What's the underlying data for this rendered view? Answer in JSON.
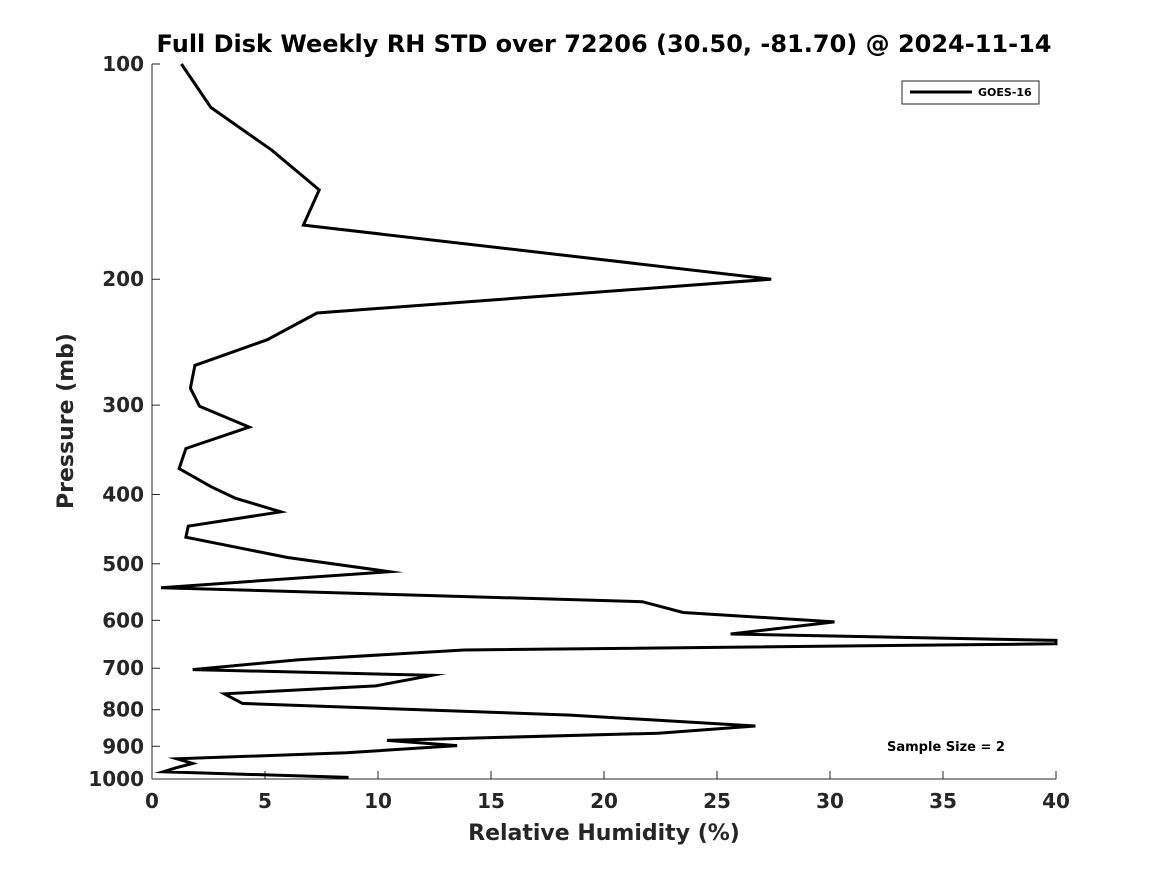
{
  "chart_data": {
    "type": "line",
    "title": "Full Disk Weekly RH STD over 72206 (30.50, -81.70) @ 2024-11-14",
    "xlabel": "Relative Humidity (%)",
    "ylabel": "Pressure (mb)",
    "xlim": [
      0,
      40
    ],
    "ylim": [
      100,
      1000
    ],
    "y_scale": "log",
    "y_reversed": true,
    "grid": false,
    "legend_position": "top-right",
    "x_ticks": [
      0,
      5,
      10,
      15,
      20,
      25,
      30,
      35,
      40
    ],
    "x_tick_labels": [
      "0",
      "5",
      "10",
      "15",
      "20",
      "25",
      "30",
      "35",
      "40"
    ],
    "y_ticks": [
      100,
      200,
      300,
      400,
      500,
      600,
      700,
      800,
      900,
      1000
    ],
    "y_tick_labels": [
      "100",
      "200",
      "300",
      "400",
      "500",
      "600",
      "700",
      "800",
      "900",
      "1000"
    ],
    "series": [
      {
        "name": "GOES-16",
        "color": "#000000",
        "x": [
          1.3,
          2.6,
          5.3,
          7.4,
          6.7,
          27.4,
          7.3,
          5.1,
          1.9,
          1.7,
          2.1,
          4.3,
          1.5,
          1.2,
          2.6,
          3.7,
          5.7,
          1.6,
          1.5,
          6.0,
          10.5,
          0.4,
          21.7,
          23.5,
          30.2,
          25.6,
          40.0,
          40.0,
          13.8,
          6.5,
          1.8,
          12.4,
          9.9,
          3.2,
          4.0,
          18.5,
          26.7,
          22.4,
          10.4,
          13.5,
          8.6,
          1.1,
          1.8,
          1.1,
          0.5,
          8.7
        ],
        "y": [
          100,
          115,
          132,
          150,
          168,
          200,
          223,
          243,
          264,
          284,
          301,
          322,
          345,
          368,
          390,
          405,
          423,
          443,
          459,
          490,
          513,
          540,
          565,
          585,
          603,
          627,
          640,
          647,
          660,
          681,
          703,
          716,
          741,
          760,
          784,
          814,
          843,
          863,
          883,
          898,
          919,
          937,
          951,
          964,
          977,
          995
        ]
      }
    ]
  },
  "annotations": {
    "sample_size": "Sample Size = 2"
  }
}
